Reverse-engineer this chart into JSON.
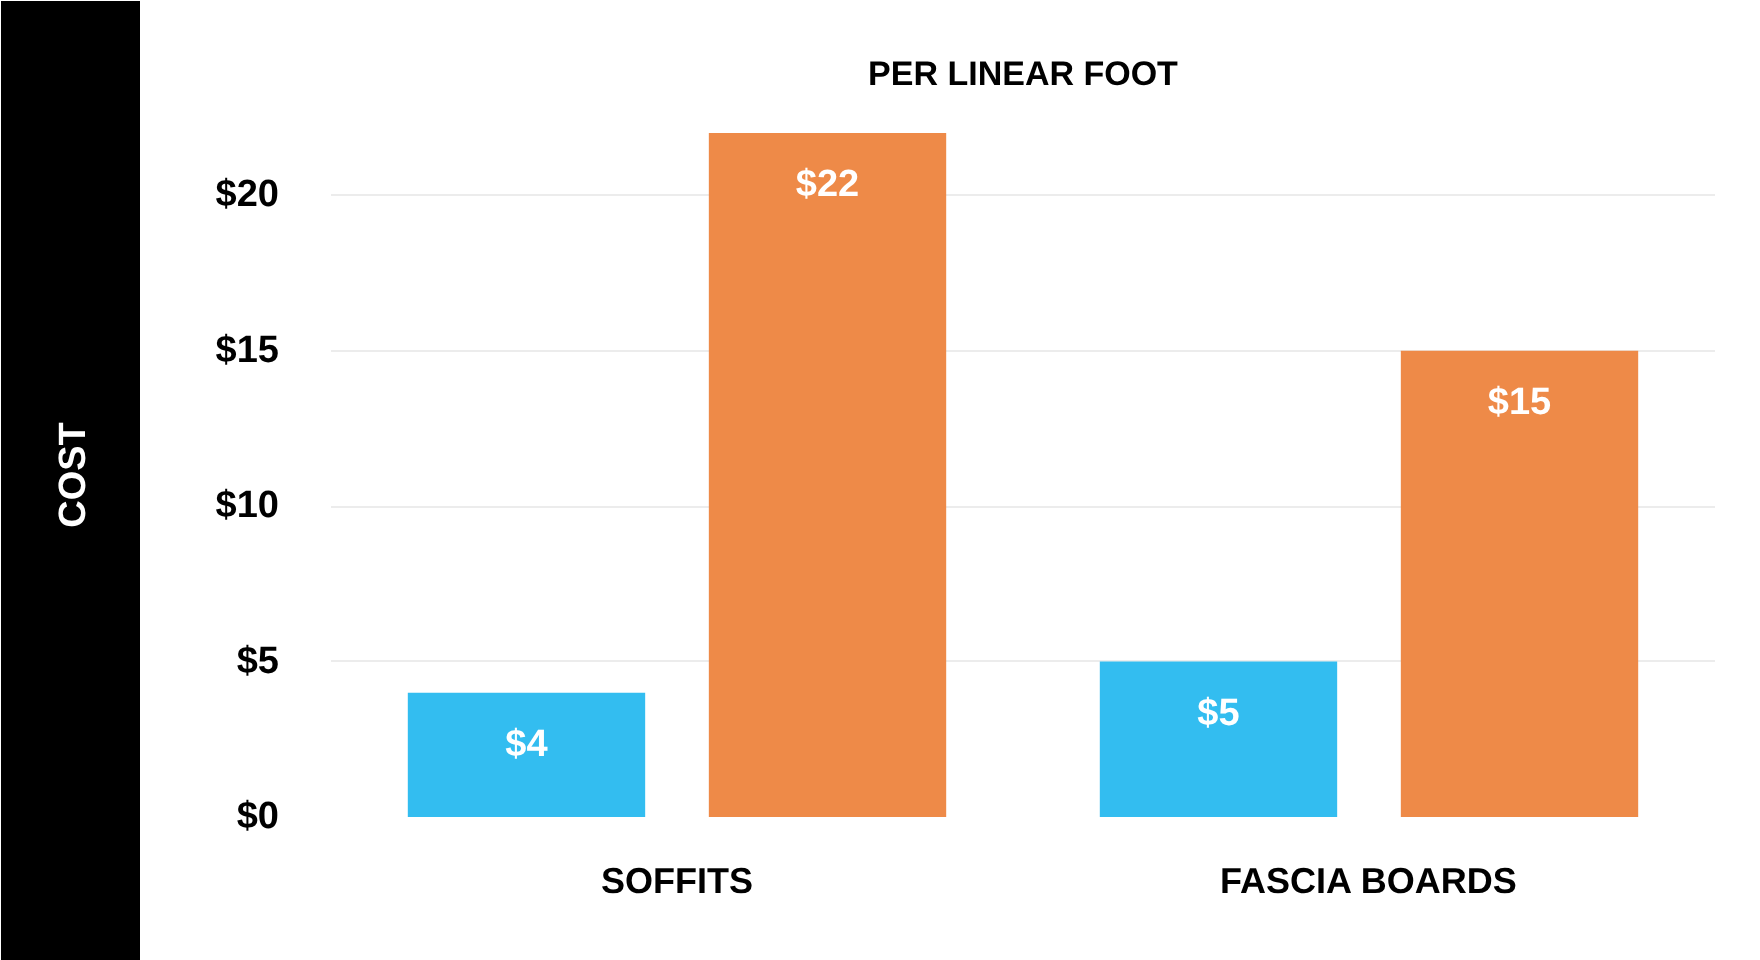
{
  "chart_data": {
    "type": "bar",
    "title": "PER LINEAR FOOT",
    "ylabel": "COST",
    "categories": [
      "SOFFITS",
      "FASCIA BOARDS"
    ],
    "series": [
      {
        "color": "#33bdf0",
        "values": [
          4,
          5
        ],
        "value_labels": [
          "$4",
          "$5"
        ]
      },
      {
        "color": "#ee8a48",
        "values": [
          22,
          15
        ],
        "value_labels": [
          "$22",
          "$15"
        ]
      }
    ],
    "ylim": [
      0,
      22
    ],
    "yticks": [
      {
        "value": 0,
        "label": "$0"
      },
      {
        "value": 5,
        "label": "$5"
      },
      {
        "value": 10,
        "label": "$10"
      },
      {
        "value": 15,
        "label": "$15"
      },
      {
        "value": 20,
        "label": "$20"
      }
    ],
    "grid": "y"
  }
}
